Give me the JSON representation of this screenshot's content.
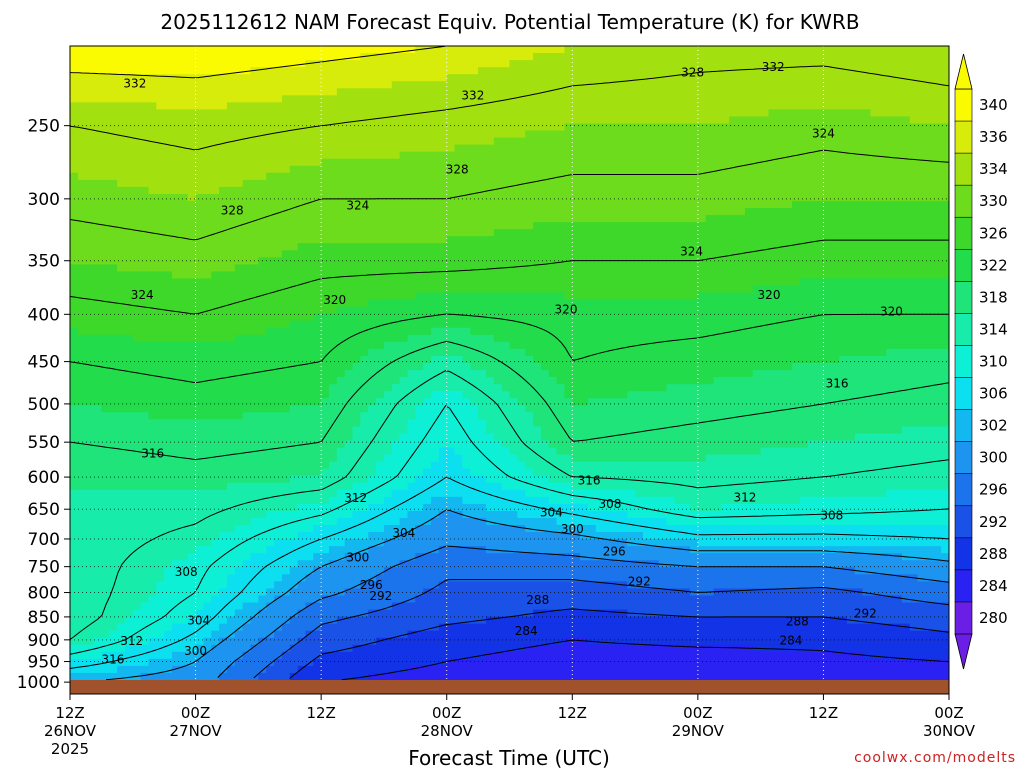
{
  "title": "2025112612 NAM Forecast Equiv. Potential Temperature (K) for KWRB",
  "xlabel": "Forecast Time (UTC)",
  "credit": "coolwx.com/modelts",
  "chart_data": {
    "type": "heatmap",
    "title": "2025112612 NAM Forecast Equiv. Potential Temperature (K) for KWRB",
    "xlabel": "Forecast Time (UTC)",
    "ylabel": "",
    "y_scale": "log",
    "y_inverted": true,
    "ylim": [
      1030,
      205
    ],
    "yticks": [
      250,
      300,
      350,
      400,
      450,
      500,
      550,
      600,
      650,
      700,
      750,
      800,
      850,
      900,
      950,
      1000
    ],
    "xticks": [
      {
        "hour": 0,
        "lines": [
          "12Z",
          "26NOV",
          "2025"
        ]
      },
      {
        "hour": 12,
        "lines": [
          "00Z",
          "27NOV"
        ]
      },
      {
        "hour": 24,
        "lines": [
          "12Z"
        ]
      },
      {
        "hour": 36,
        "lines": [
          "00Z",
          "28NOV"
        ]
      },
      {
        "hour": 48,
        "lines": [
          "12Z"
        ]
      },
      {
        "hour": 60,
        "lines": [
          "00Z",
          "29NOV"
        ]
      },
      {
        "hour": 72,
        "lines": [
          "12Z"
        ]
      },
      {
        "hour": 84,
        "lines": [
          "00Z",
          "30NOV"
        ]
      }
    ],
    "xlim_hours": [
      0,
      84
    ],
    "colorbar": {
      "levels": [
        280,
        284,
        288,
        292,
        296,
        300,
        302,
        306,
        310,
        314,
        318,
        322,
        326,
        330,
        334,
        336,
        340
      ],
      "colors": [
        "#6a1ee6",
        "#2a22f2",
        "#1233e6",
        "#1a52e8",
        "#1c74ec",
        "#1c94f0",
        "#14b8f0",
        "#0ce0f0",
        "#0ef0d6",
        "#18ecaa",
        "#1ee47a",
        "#22dc4c",
        "#3ed82a",
        "#6cdc1c",
        "#a2e010",
        "#d8ec0c",
        "#fafa00"
      ],
      "extend": "both"
    },
    "contour_interval": 4,
    "ground_color": "#a0522d",
    "profiles": [
      {
        "hour": 0,
        "p": [
          1000,
          950,
          900,
          850,
          800,
          750,
          700,
          650,
          600,
          550,
          500,
          450,
          400,
          350,
          300,
          250,
          205
        ],
        "theta_e": [
          300,
          306,
          312,
          314,
          314,
          314,
          314,
          314,
          314,
          316,
          318,
          320,
          323,
          326,
          329,
          332,
          338
        ]
      },
      {
        "hour": 12,
        "p": [
          1000,
          950,
          900,
          850,
          800,
          750,
          700,
          650,
          600,
          550,
          500,
          450,
          400,
          350,
          300,
          250,
          205
        ],
        "theta_e": [
          298,
          300,
          303,
          306,
          308,
          309,
          311,
          313,
          315,
          317,
          319,
          321,
          324,
          327,
          330,
          333,
          338
        ]
      },
      {
        "hour": 24,
        "p": [
          1000,
          950,
          900,
          850,
          800,
          750,
          700,
          650,
          600,
          550,
          500,
          450,
          400,
          350,
          300,
          250,
          205
        ],
        "theta_e": [
          284,
          287,
          290,
          293,
          297,
          300,
          304,
          309,
          314,
          316,
          318,
          320,
          322,
          325,
          328,
          332,
          337
        ]
      },
      {
        "hour": 36,
        "p": [
          1000,
          950,
          900,
          850,
          800,
          750,
          700,
          650,
          600,
          550,
          500,
          450,
          400,
          350,
          300,
          250,
          205
        ],
        "theta_e": [
          282,
          284,
          286,
          289,
          291,
          293,
          297,
          300,
          304,
          306,
          308,
          313,
          320,
          325,
          328,
          331,
          336
        ]
      },
      {
        "hour": 48,
        "p": [
          1000,
          950,
          900,
          850,
          800,
          750,
          700,
          650,
          600,
          550,
          500,
          450,
          400,
          350,
          300,
          250,
          205
        ],
        "theta_e": [
          280,
          282,
          284,
          287,
          290,
          294,
          299,
          305,
          312,
          316,
          318,
          320,
          321,
          324,
          327,
          330,
          334
        ]
      },
      {
        "hour": 60,
        "p": [
          1000,
          950,
          900,
          850,
          800,
          750,
          700,
          650,
          600,
          550,
          500,
          450,
          400,
          350,
          300,
          250,
          205
        ],
        "theta_e": [
          280,
          282,
          285,
          288,
          292,
          296,
          303,
          310,
          313,
          315,
          317,
          319,
          321,
          324,
          327,
          330,
          333
        ]
      },
      {
        "hour": 72,
        "p": [
          1000,
          950,
          900,
          850,
          800,
          750,
          700,
          650,
          600,
          550,
          500,
          450,
          400,
          350,
          300,
          250,
          205
        ],
        "theta_e": [
          281,
          283,
          285,
          288,
          291,
          296,
          303,
          309,
          312,
          314,
          316,
          318,
          320,
          323,
          326,
          329,
          333
        ]
      },
      {
        "hour": 84,
        "p": [
          1000,
          950,
          900,
          850,
          800,
          750,
          700,
          650,
          600,
          550,
          500,
          450,
          400,
          350,
          300,
          250,
          205
        ],
        "theta_e": [
          282,
          284,
          287,
          290,
          294,
          299,
          304,
          308,
          311,
          313,
          315,
          317,
          320,
          323,
          326,
          330,
          334
        ]
      }
    ],
    "contour_labels": [
      {
        "text": "332",
        "hour": 6.2,
        "p": 225
      },
      {
        "text": "332",
        "hour": 38.5,
        "p": 232
      },
      {
        "text": "328",
        "hour": 59.5,
        "p": 219
      },
      {
        "text": "332",
        "hour": 67.2,
        "p": 216
      },
      {
        "text": "328",
        "hour": 15.5,
        "p": 309
      },
      {
        "text": "324",
        "hour": 27.5,
        "p": 305
      },
      {
        "text": "328",
        "hour": 37.0,
        "p": 279
      },
      {
        "text": "324",
        "hour": 72.0,
        "p": 255
      },
      {
        "text": "324",
        "hour": 6.9,
        "p": 381
      },
      {
        "text": "320",
        "hour": 25.3,
        "p": 386
      },
      {
        "text": "320",
        "hour": 47.4,
        "p": 395
      },
      {
        "text": "324",
        "hour": 59.4,
        "p": 342
      },
      {
        "text": "320",
        "hour": 66.8,
        "p": 381
      },
      {
        "text": "320",
        "hour": 78.5,
        "p": 397
      },
      {
        "text": "316",
        "hour": 7.9,
        "p": 566
      },
      {
        "text": "316",
        "hour": 73.3,
        "p": 475
      },
      {
        "text": "316",
        "hour": 49.6,
        "p": 605
      },
      {
        "text": "312",
        "hour": 27.3,
        "p": 632
      },
      {
        "text": "304",
        "hour": 31.9,
        "p": 690
      },
      {
        "text": "304",
        "hour": 46.0,
        "p": 655
      },
      {
        "text": "308",
        "hour": 51.6,
        "p": 642
      },
      {
        "text": "312",
        "hour": 64.5,
        "p": 631
      },
      {
        "text": "308",
        "hour": 72.8,
        "p": 660
      },
      {
        "text": "300",
        "hour": 48.0,
        "p": 683
      },
      {
        "text": "300",
        "hour": 27.5,
        "p": 733
      },
      {
        "text": "296",
        "hour": 52.0,
        "p": 722
      },
      {
        "text": "308",
        "hour": 11.1,
        "p": 760
      },
      {
        "text": "296",
        "hour": 28.8,
        "p": 785
      },
      {
        "text": "292",
        "hour": 54.4,
        "p": 778
      },
      {
        "text": "292",
        "hour": 29.7,
        "p": 807
      },
      {
        "text": "288",
        "hour": 44.7,
        "p": 815
      },
      {
        "text": "292",
        "hour": 76.0,
        "p": 843
      },
      {
        "text": "304",
        "hour": 12.3,
        "p": 858
      },
      {
        "text": "284",
        "hour": 43.6,
        "p": 880
      },
      {
        "text": "288",
        "hour": 69.5,
        "p": 860
      },
      {
        "text": "312",
        "hour": 5.9,
        "p": 903
      },
      {
        "text": "284",
        "hour": 68.9,
        "p": 902
      },
      {
        "text": "316",
        "hour": 4.1,
        "p": 945
      },
      {
        "text": "300",
        "hour": 12.0,
        "p": 925
      }
    ]
  }
}
